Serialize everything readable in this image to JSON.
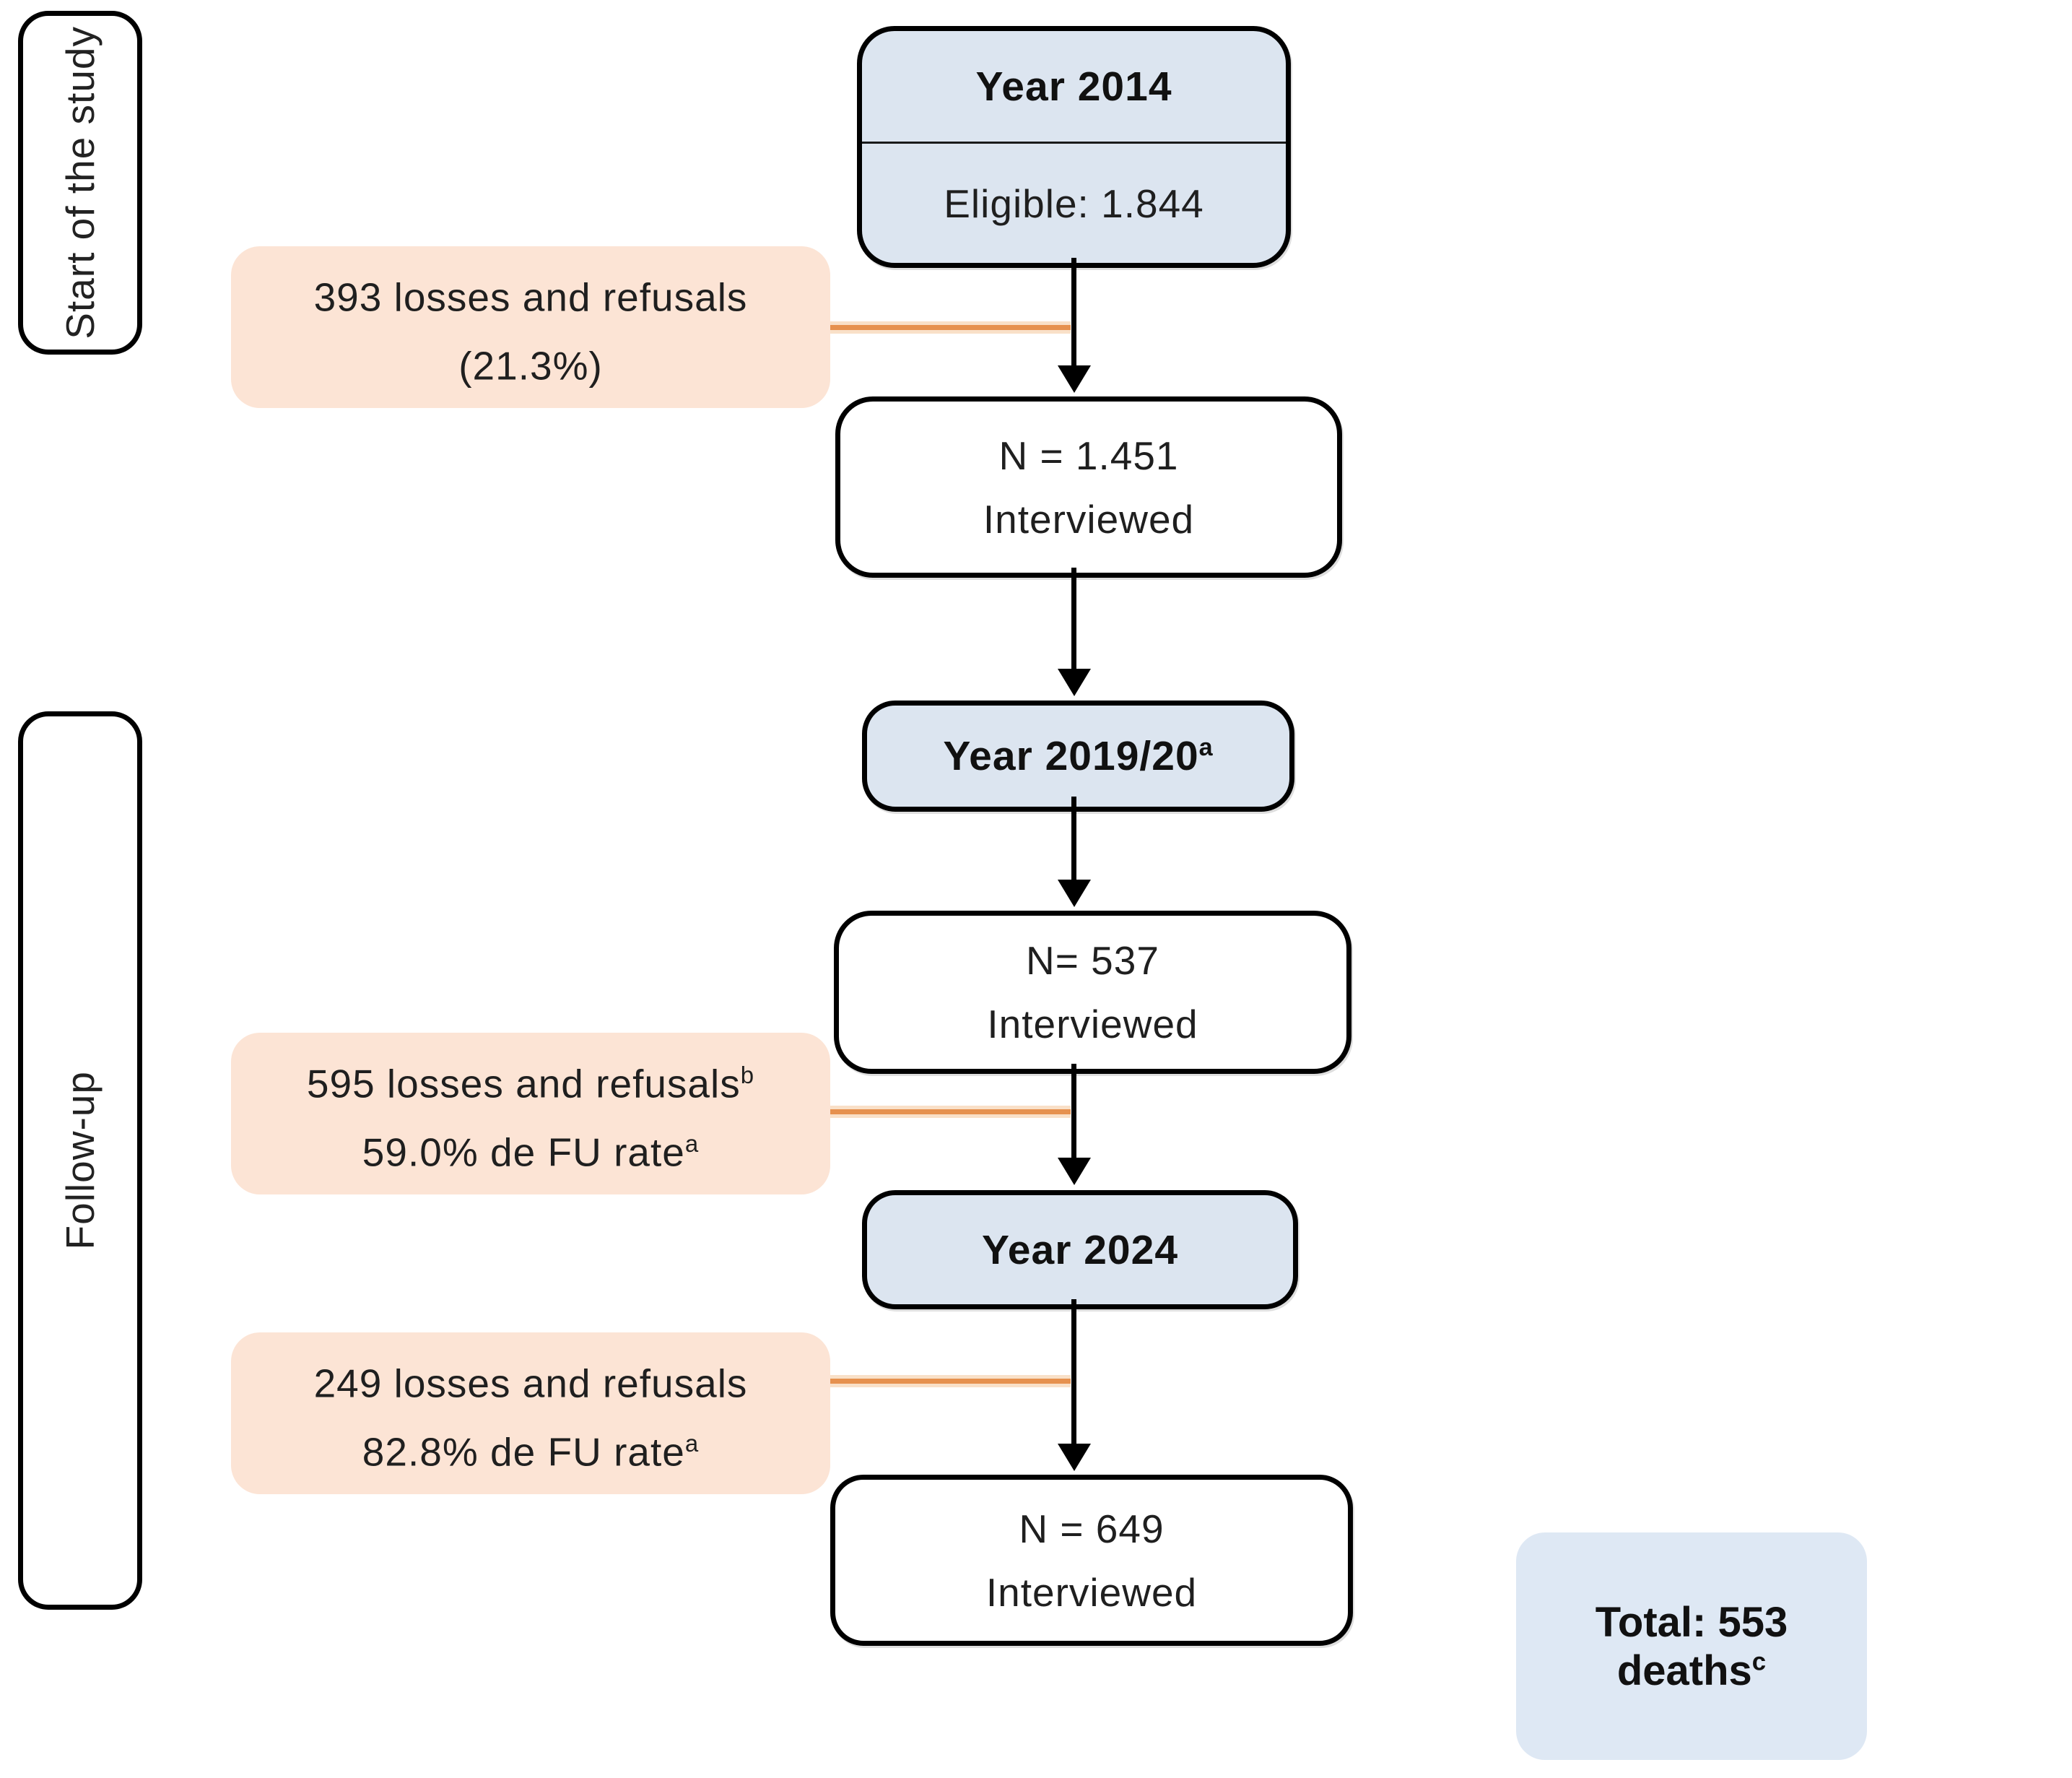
{
  "diagram": {
    "phase_labels": [
      {
        "label": "Start of the study"
      },
      {
        "label": "Follow-up"
      }
    ],
    "nodes": {
      "year2014": {
        "title": "Year 2014",
        "subtitle": "Eligible: 1.844"
      },
      "n1451": {
        "line1": "N = 1.451",
        "line2": "Interviewed"
      },
      "year2019": {
        "title": "Year 2019/20",
        "title_sup": "a"
      },
      "n537": {
        "line1": "N= 537",
        "line2": "Interviewed"
      },
      "year2024": {
        "title": "Year 2024"
      },
      "n649": {
        "line1": "N = 649",
        "line2": "Interviewed"
      },
      "total": {
        "text": "Total: 553 deaths",
        "text_sup": "c"
      }
    },
    "side_notes": [
      {
        "line1": "393 losses and refusals",
        "line1_sup": "",
        "line2": "(21.3%)",
        "line2_sup": ""
      },
      {
        "line1": "595 losses and refusals",
        "line1_sup": "b",
        "line2": "59.0% de FU rate",
        "line2_sup": "a"
      },
      {
        "line1": "249 losses and refusals",
        "line1_sup": "",
        "line2": "82.8% de FU rate",
        "line2_sup": "a"
      }
    ],
    "colors": {
      "node_fill_blue": "#dce5f0",
      "note_fill_peach": "#fce4d5",
      "total_fill": "#dee8f4",
      "connector_orange": "#e6914f",
      "border": "#000000"
    }
  }
}
